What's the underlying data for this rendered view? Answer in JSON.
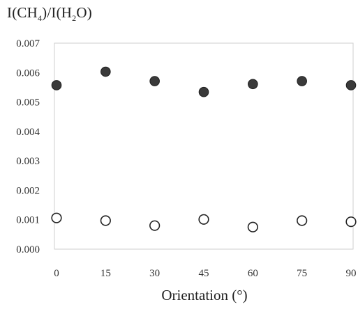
{
  "chart_data": {
    "type": "scatter",
    "title": "",
    "ylabel_parts": [
      "I(CH",
      "4",
      ")/I(H",
      "2",
      "O)"
    ],
    "xlabel": "Orientation (°)",
    "x_ticks": [
      "0",
      "15",
      "30",
      "45",
      "60",
      "75",
      "90"
    ],
    "y_ticks": [
      "0.000",
      "0.001",
      "0.002",
      "0.003",
      "0.004",
      "0.005",
      "0.006",
      "0.007"
    ],
    "xlim": [
      0,
      90
    ],
    "ylim": [
      0,
      0.007
    ],
    "grid": false,
    "legend": "none",
    "series": [
      {
        "marker": "filled-circle",
        "color": "#3a3a3a",
        "x": [
          0,
          15,
          30,
          45,
          60,
          75,
          90
        ],
        "y": [
          0.00557,
          0.00603,
          0.00571,
          0.00534,
          0.00561,
          0.00571,
          0.00557
        ]
      },
      {
        "marker": "open-circle",
        "color": "#222222",
        "x": [
          0,
          15,
          30,
          45,
          60,
          75,
          90
        ],
        "y": [
          0.00106,
          0.00097,
          0.0008,
          0.00101,
          0.00075,
          0.00097,
          0.00093
        ]
      }
    ]
  }
}
